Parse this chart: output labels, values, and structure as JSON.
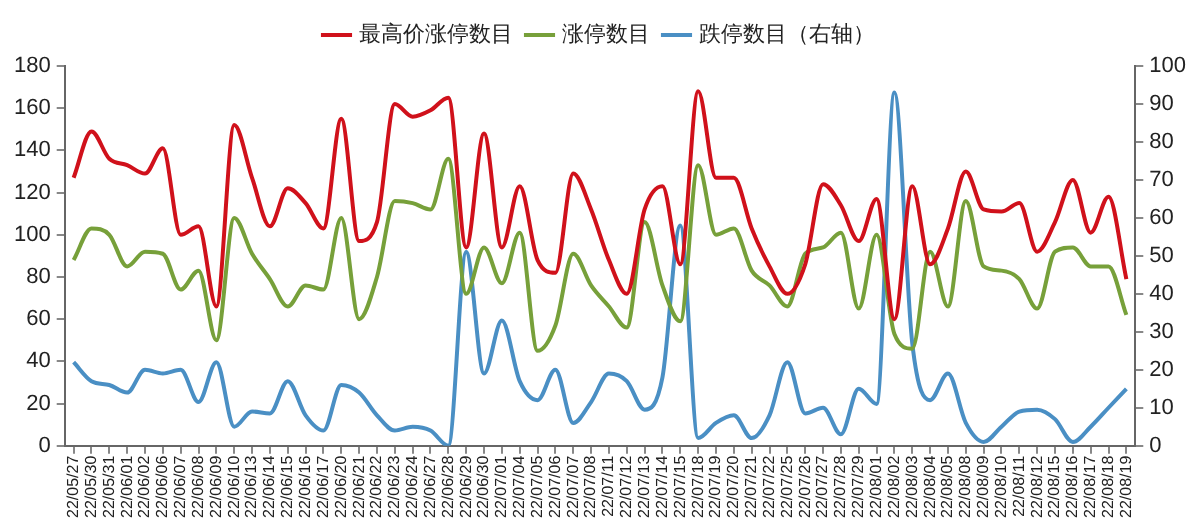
{
  "chart_data": {
    "type": "line",
    "categories": [
      "22/05/27",
      "22/05/30",
      "22/05/31",
      "22/06/01",
      "22/06/02",
      "22/06/06",
      "22/06/07",
      "22/06/08",
      "22/06/09",
      "22/06/10",
      "22/06/13",
      "22/06/14",
      "22/06/15",
      "22/06/16",
      "22/06/17",
      "22/06/20",
      "22/06/21",
      "22/06/22",
      "22/06/23",
      "22/06/24",
      "22/06/27",
      "22/06/28",
      "22/06/29",
      "22/06/30",
      "22/07/01",
      "22/07/04",
      "22/07/05",
      "22/07/06",
      "22/07/07",
      "22/07/08",
      "22/07/11",
      "22/07/12",
      "22/07/13",
      "22/07/14",
      "22/07/15",
      "22/07/18",
      "22/07/19",
      "22/07/20",
      "22/07/21",
      "22/07/22",
      "22/07/25",
      "22/07/26",
      "22/07/27",
      "22/07/28",
      "22/07/29",
      "22/08/01",
      "22/08/02",
      "22/08/03",
      "22/08/04",
      "22/08/05",
      "22/08/08",
      "22/08/09",
      "22/08/10",
      "22/08/11",
      "22/08/12",
      "22/08/15",
      "22/08/16",
      "22/08/17",
      "22/08/18",
      "22/08/19"
    ],
    "series": [
      {
        "name": "最高价涨停数目",
        "color": "#d0111b",
        "values": [
          127,
          149,
          136,
          133,
          129,
          141,
          100,
          104,
          66,
          152,
          127,
          104,
          122,
          115,
          103,
          155,
          97,
          106,
          162,
          156,
          159,
          165,
          94,
          148,
          94,
          123,
          88,
          82,
          129,
          112,
          88,
          72,
          112,
          123,
          86,
          168,
          127,
          127,
          103,
          85,
          72,
          86,
          124,
          114,
          97,
          117,
          60,
          123,
          86,
          103,
          130,
          112,
          111,
          115,
          92,
          106,
          126,
          101,
          118,
          79
        ]
      },
      {
        "name": "涨停数目",
        "color": "#77a03a",
        "values": [
          88,
          103,
          100,
          85,
          92,
          91,
          74,
          83,
          50,
          108,
          91,
          79,
          66,
          76,
          74,
          108,
          60,
          80,
          116,
          115,
          112,
          136,
          72,
          94,
          77,
          101,
          45,
          57,
          91,
          76,
          66,
          56,
          106,
          76,
          59,
          133,
          100,
          103,
          83,
          76,
          66,
          91,
          94,
          101,
          65,
          100,
          53,
          46,
          92,
          66,
          116,
          85,
          83,
          79,
          65,
          92,
          94,
          85,
          85,
          62
        ]
      },
      {
        "name": "跌停数目（右轴）",
        "color": "#4a8fc4",
        "axis": "y2",
        "values": [
          22,
          17,
          16,
          14,
          20,
          19,
          20,
          11.5,
          22,
          5,
          9,
          8.5,
          17,
          8,
          4,
          16,
          14,
          8,
          4,
          5,
          4,
          0,
          51,
          19,
          33,
          17,
          12,
          20,
          6,
          11.5,
          19,
          17,
          9.5,
          18,
          58,
          2,
          6,
          8,
          2,
          8,
          22,
          8.5,
          10,
          3,
          15,
          11,
          93,
          27,
          12,
          19,
          6,
          1,
          5,
          9,
          9.5,
          7,
          1,
          5,
          10,
          15
        ]
      }
    ],
    "ylim": [
      0,
      180
    ],
    "yticks": [
      0,
      20,
      40,
      60,
      80,
      100,
      120,
      140,
      160,
      180
    ],
    "y2lim": [
      0,
      100
    ],
    "y2ticks": [
      0,
      10,
      20,
      30,
      40,
      50,
      60,
      70,
      80,
      90,
      100
    ],
    "grid": false,
    "legend": "top",
    "marker": "none",
    "line_style": "solid"
  }
}
